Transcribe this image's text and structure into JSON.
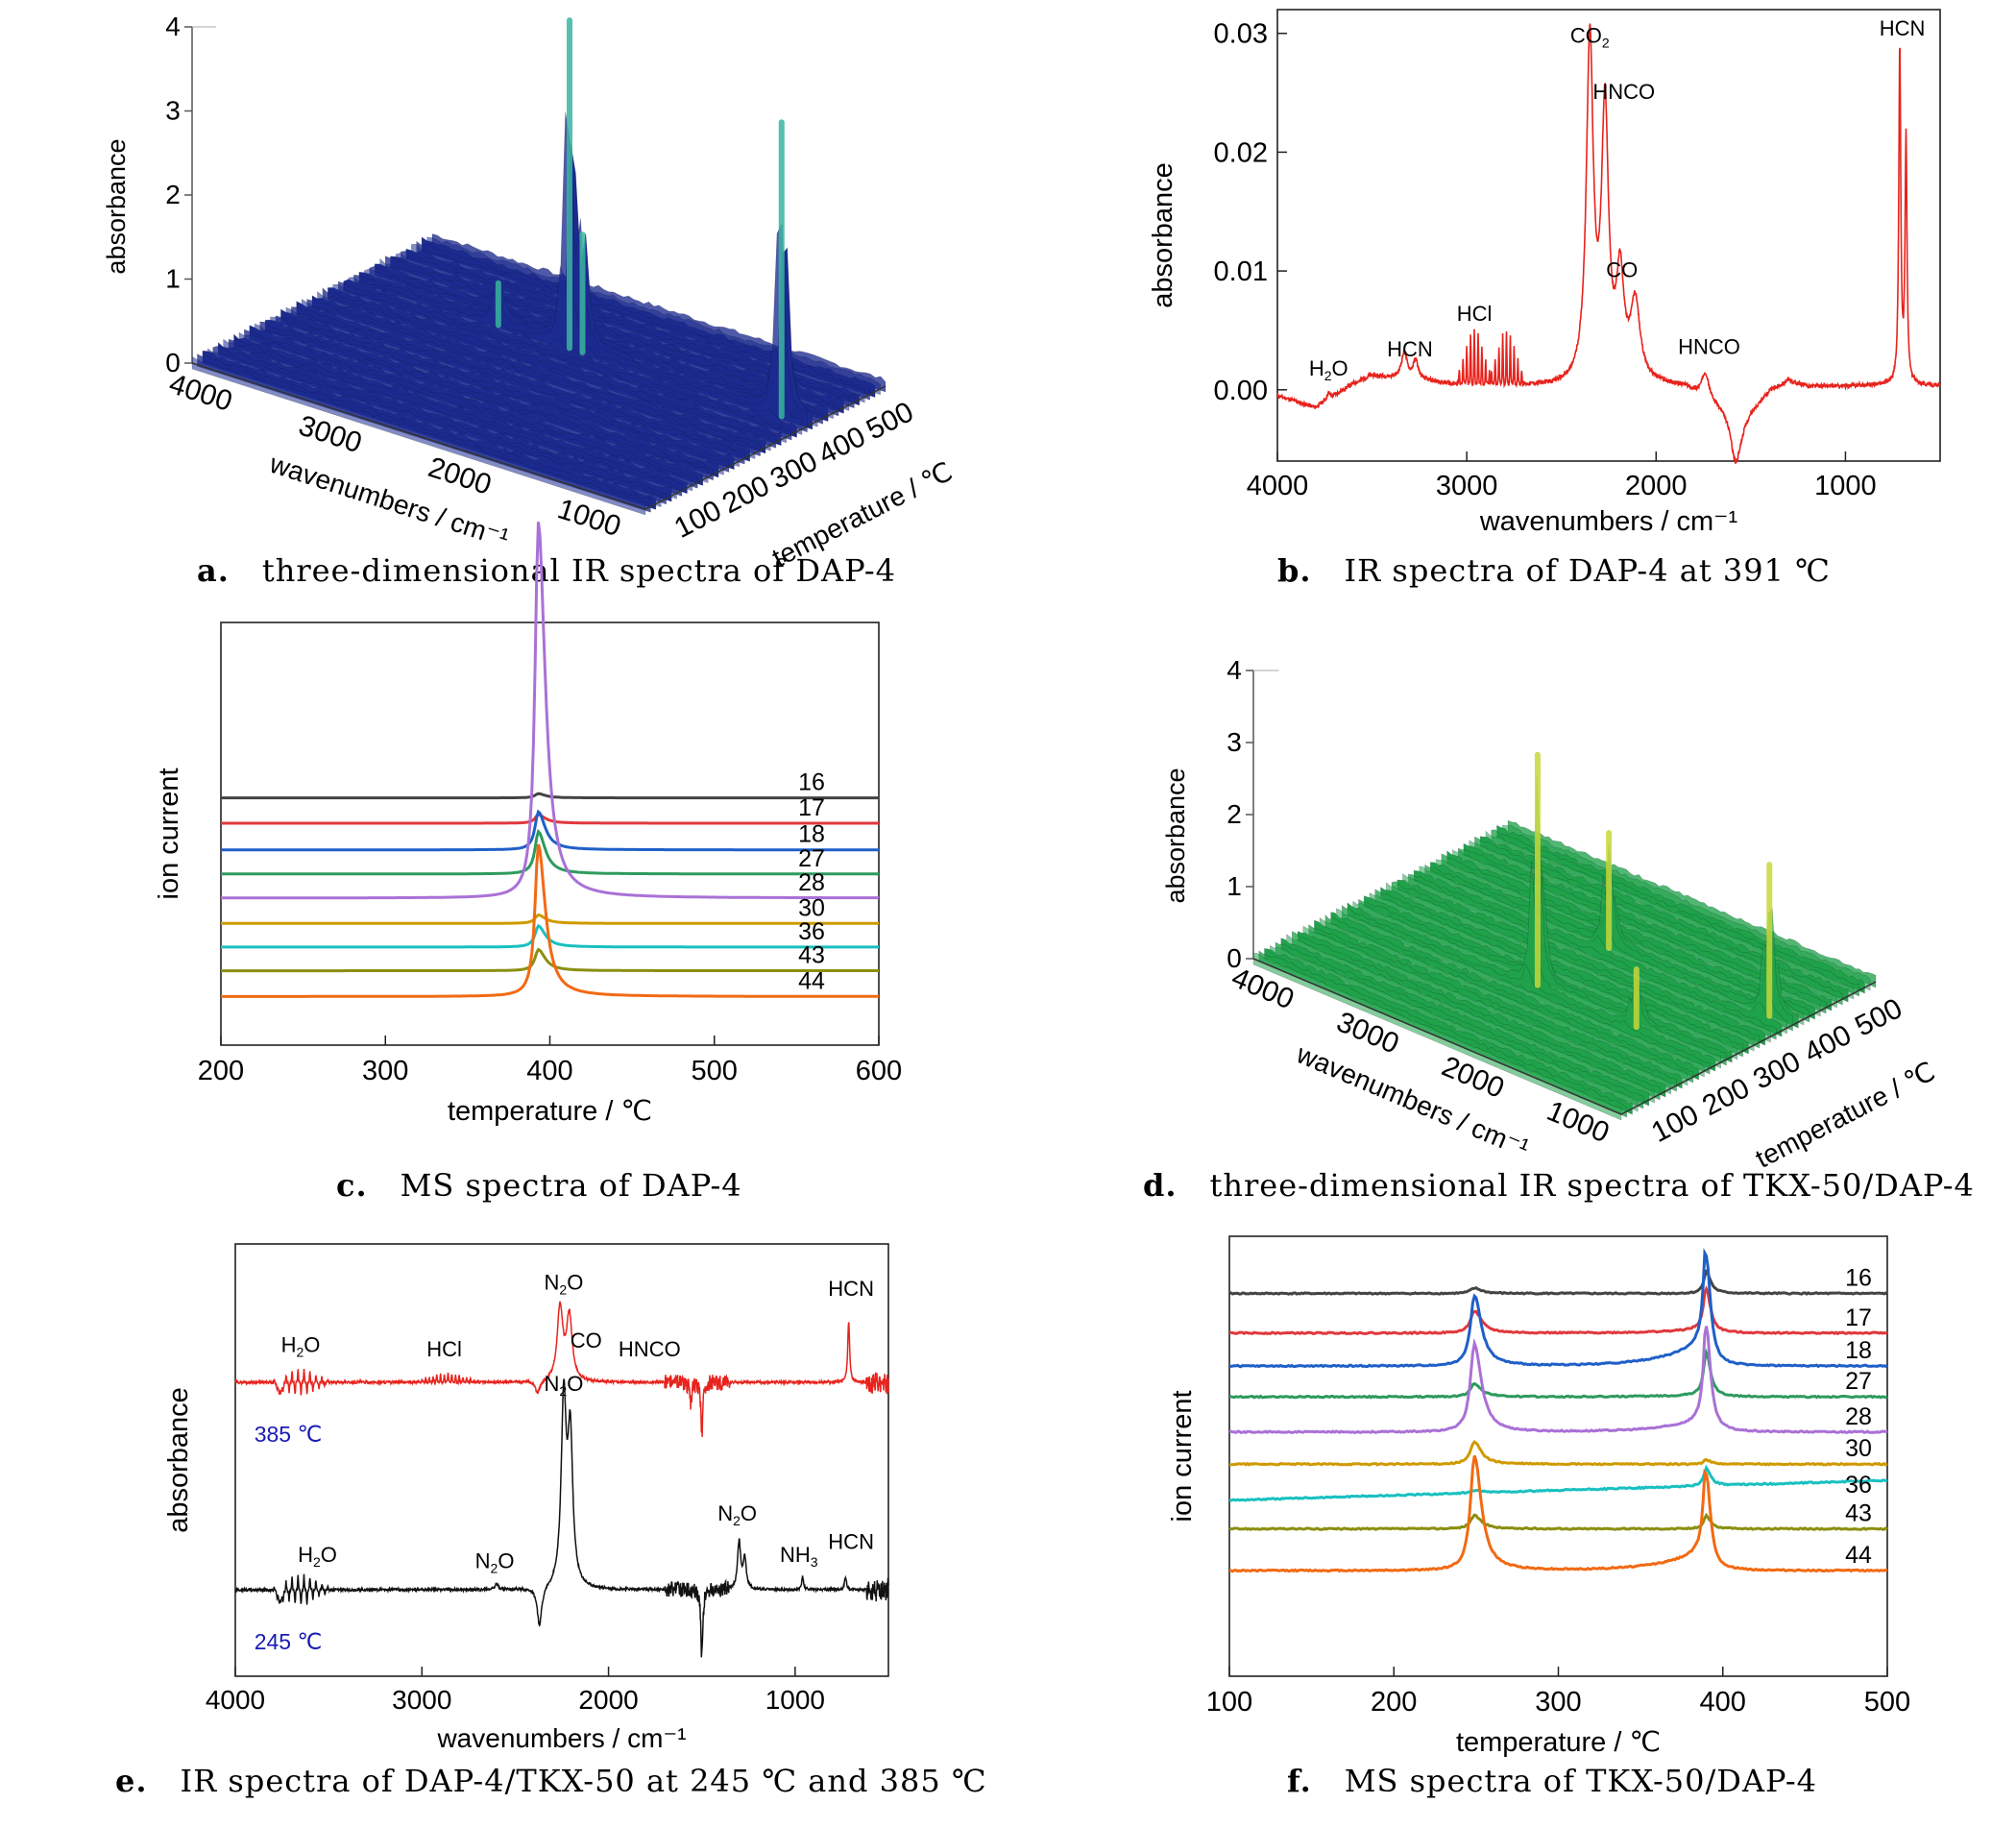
{
  "captions": {
    "a": {
      "letter": "a.",
      "text": "three-dimensional IR spectra of DAP-4"
    },
    "b": {
      "letter": "b.",
      "text": "IR spectra of DAP-4 at 391 ℃"
    },
    "c": {
      "letter": "c.",
      "text": "MS spectra of DAP-4"
    },
    "d": {
      "letter": "d.",
      "text": "three-dimensional IR spectra of TKX-50/DAP-4"
    },
    "e": {
      "letter": "e.",
      "text": "IR spectra of DAP-4/TKX-50 at 245 ℃ and 385 ℃"
    },
    "f": {
      "letter": "f.",
      "text": "MS spectra of TKX-50/DAP-4"
    }
  },
  "chart_data": [
    {
      "id": "a",
      "type": "surface3d",
      "zlabel": "absorbance",
      "xlabel": "wavenumbers / cm⁻¹",
      "ylabel": "temperature / ℃",
      "x_ticks": [
        "4000",
        "3000",
        "2000",
        "1000"
      ],
      "y_ticks": [
        "100",
        "200",
        "300",
        "400",
        "500"
      ],
      "z_ticks": [
        "0",
        "1",
        "2",
        "3",
        "4"
      ],
      "xlim": [
        4000,
        500
      ],
      "ylim": [
        50,
        550
      ],
      "zlim": [
        0,
        4
      ],
      "color": "#1c2b8f",
      "peaks": [
        {
          "x": 2350,
          "y": 391,
          "z": 3.9
        },
        {
          "x": 2250,
          "y": 391,
          "z": 1.4
        },
        {
          "x": 2900,
          "y": 391,
          "z": 0.5
        },
        {
          "x": 713,
          "y": 391,
          "z": 3.5
        }
      ]
    },
    {
      "id": "b",
      "type": "line",
      "xlabel": "wavenumbers / cm⁻¹",
      "ylabel": "absorbance",
      "xlim": [
        4000,
        500
      ],
      "ylim": [
        -0.006,
        0.032
      ],
      "x_ticks": [
        4000,
        3000,
        2000,
        1000
      ],
      "y_ticks": [
        0.0,
        0.01,
        0.02,
        0.03
      ],
      "y_tick_labels": [
        "0.00",
        "0.01",
        "0.02",
        "0.03"
      ],
      "color": "#e8231d",
      "baseline": [
        {
          "x": 4000,
          "y": -0.0005
        },
        {
          "x": 3900,
          "y": -0.001
        },
        {
          "x": 3800,
          "y": -0.0015
        },
        {
          "x": 3700,
          "y": -0.0005
        },
        {
          "x": 3600,
          "y": 0.0005
        },
        {
          "x": 3500,
          "y": 0.0012
        },
        {
          "x": 3400,
          "y": 0.001
        },
        {
          "x": 3200,
          "y": 0.0007
        },
        {
          "x": 3100,
          "y": 0.0005
        },
        {
          "x": 2700,
          "y": 0.0003
        },
        {
          "x": 2450,
          "y": 0.0002
        },
        {
          "x": 2420,
          "y": 0.0003
        },
        {
          "x": 2000,
          "y": 0.0004
        },
        {
          "x": 1850,
          "y": 0.0002
        },
        {
          "x": 1700,
          "y": -0.001
        },
        {
          "x": 1550,
          "y": -0.0025
        },
        {
          "x": 1400,
          "y": 0.0
        },
        {
          "x": 1300,
          "y": 0.0008
        },
        {
          "x": 1200,
          "y": 0.0003
        },
        {
          "x": 1000,
          "y": 0.0003
        },
        {
          "x": 850,
          "y": 0.0004
        },
        {
          "x": 600,
          "y": 0.0004
        },
        {
          "x": 500,
          "y": 0.0003
        }
      ],
      "peaks": [
        {
          "x": 3730,
          "y": 0.0005,
          "w": 12
        },
        {
          "x": 3330,
          "y": 0.0022,
          "w": 18
        },
        {
          "x": 3270,
          "y": 0.0016,
          "w": 16
        },
        {
          "x": 2350,
          "y": 0.0285,
          "w": 22
        },
        {
          "x": 2270,
          "y": 0.0225,
          "w": 22
        },
        {
          "x": 2190,
          "y": 0.0085,
          "w": 24
        },
        {
          "x": 2110,
          "y": 0.0065,
          "w": 30
        },
        {
          "x": 1740,
          "y": 0.0022,
          "w": 22
        },
        {
          "x": 1580,
          "y": -0.004,
          "w": 30
        },
        {
          "x": 713,
          "y": 0.0285,
          "w": 6
        },
        {
          "x": 680,
          "y": 0.0205,
          "w": 6
        }
      ],
      "combs": [
        {
          "from": 3050,
          "to": 2880,
          "center": 2960,
          "amp": 0.0045,
          "spacing": 20,
          "w": 3
        },
        {
          "from": 2880,
          "to": 2700,
          "center": 2790,
          "amp": 0.0045,
          "spacing": 20,
          "w": 3
        }
      ],
      "annotations": [
        {
          "text": "H2O",
          "x": 3730,
          "y": 0.0012,
          "sub": "2"
        },
        {
          "text": "HCN",
          "x": 3300,
          "y": 0.0028
        },
        {
          "text": "HCl",
          "x": 2960,
          "y": 0.0058
        },
        {
          "text": "CO2",
          "x": 2350,
          "y": 0.0292,
          "sub": "2"
        },
        {
          "text": "HNCO",
          "x": 2170,
          "y": 0.0245
        },
        {
          "text": "CO",
          "x": 2180,
          "y": 0.0095
        },
        {
          "text": "HNCO",
          "x": 1720,
          "y": 0.003
        },
        {
          "text": "HCN",
          "x": 700,
          "y": 0.0298
        }
      ]
    },
    {
      "id": "c",
      "type": "line",
      "xlabel": "temperature / ℃",
      "ylabel": "ion current",
      "xlim": [
        200,
        600
      ],
      "x_ticks": [
        200,
        300,
        400,
        500,
        600
      ],
      "peak_x": 393,
      "series": [
        {
          "name": "16",
          "color": "#444444",
          "base": 0.585,
          "peak": 0.01
        },
        {
          "name": "17",
          "color": "#e0383d",
          "base": 0.525,
          "peak": 0.02
        },
        {
          "name": "18",
          "color": "#1f5fc8",
          "base": 0.462,
          "peak": 0.09
        },
        {
          "name": "27",
          "color": "#2e9a5e",
          "base": 0.405,
          "peak": 0.1
        },
        {
          "name": "28",
          "color": "#a971d6",
          "base": 0.348,
          "peak": 0.89
        },
        {
          "name": "30",
          "color": "#cf9a00",
          "base": 0.288,
          "peak": 0.02
        },
        {
          "name": "36",
          "color": "#19c0c0",
          "base": 0.232,
          "peak": 0.05
        },
        {
          "name": "43",
          "color": "#8a8f10",
          "base": 0.176,
          "peak": 0.05
        },
        {
          "name": "44",
          "color": "#f26a12",
          "base": 0.115,
          "peak": 0.36
        }
      ]
    },
    {
      "id": "d",
      "type": "surface3d",
      "zlabel": "absorbance",
      "xlabel": "wavenumbers / cm⁻¹",
      "ylabel": "temperature / ℃",
      "x_ticks": [
        "4000",
        "3000",
        "2000",
        "1000"
      ],
      "y_ticks": [
        "100",
        "200",
        "300",
        "400",
        "500"
      ],
      "z_ticks": [
        "0",
        "1",
        "2",
        "3",
        "4"
      ],
      "xlim": [
        4000,
        500
      ],
      "ylim": [
        50,
        550
      ],
      "zlim": [
        0,
        4
      ],
      "color": "#1fa24a",
      "peaks": [
        {
          "x": 2240,
          "y": 245,
          "z": 3.2
        },
        {
          "x": 2240,
          "y": 385,
          "z": 1.6
        },
        {
          "x": 713,
          "y": 385,
          "z": 2.1
        },
        {
          "x": 1300,
          "y": 245,
          "z": 0.8
        }
      ]
    },
    {
      "id": "e",
      "type": "line",
      "xlabel": "wavenumbers / cm⁻¹",
      "ylabel": "absorbance",
      "xlim": [
        4000,
        500
      ],
      "x_ticks": [
        4000,
        3000,
        2000,
        1000
      ],
      "series": [
        {
          "name": "385 ℃",
          "color": "#e8231d",
          "label_color": "#1a1ab4",
          "offset": 0.68,
          "peaks": [
            {
              "x": 3760,
              "y": -0.035,
              "w": 8
            },
            {
              "x": 2260,
              "y": 0.17,
              "w": 18
            },
            {
              "x": 2210,
              "y": 0.15,
              "w": 18
            },
            {
              "x": 2380,
              "y": -0.03,
              "w": 15
            },
            {
              "x": 1500,
              "y": -0.12,
              "w": 6
            },
            {
              "x": 1560,
              "y": -0.05,
              "w": 6
            },
            {
              "x": 713,
              "y": 0.14,
              "w": 6
            }
          ],
          "combs": [
            {
              "from": 3800,
              "to": 3500,
              "center": 3650,
              "amp": 0.03,
              "spacing": 16,
              "w": 3,
              "signed": true
            },
            {
              "from": 3030,
              "to": 2700,
              "center": 2860,
              "amp": 0.02,
              "spacing": 20,
              "w": 3
            }
          ]
        },
        {
          "name": "245 ℃",
          "color": "#111111",
          "label_color": "#1a1ab4",
          "offset": 0.2,
          "peaks": [
            {
              "x": 3760,
              "y": -0.04,
              "w": 8
            },
            {
              "x": 2600,
              "y": 0.015,
              "w": 10
            },
            {
              "x": 2240,
              "y": 0.43,
              "w": 16
            },
            {
              "x": 2205,
              "y": 0.34,
              "w": 16
            },
            {
              "x": 2370,
              "y": -0.09,
              "w": 15
            },
            {
              "x": 1500,
              "y": -0.16,
              "w": 6
            },
            {
              "x": 1300,
              "y": 0.11,
              "w": 10
            },
            {
              "x": 1270,
              "y": 0.07,
              "w": 10
            },
            {
              "x": 960,
              "y": 0.03,
              "w": 6
            },
            {
              "x": 730,
              "y": 0.03,
              "w": 6
            }
          ],
          "combs": [
            {
              "from": 3800,
              "to": 3500,
              "center": 3650,
              "amp": 0.035,
              "spacing": 16,
              "w": 3,
              "signed": true
            }
          ]
        }
      ],
      "annotations": [
        {
          "text": "H2O",
          "x": 3650,
          "series": 0,
          "dy": 0.07,
          "sub": "2"
        },
        {
          "text": "HCl",
          "x": 2880,
          "series": 0,
          "dy": 0.06
        },
        {
          "text": "N2O",
          "x": 2240,
          "series": 0,
          "dy": 0.215,
          "sub": "2"
        },
        {
          "text": "CO",
          "x": 2120,
          "series": 0,
          "dy": 0.08
        },
        {
          "text": "HNCO",
          "x": 1780,
          "series": 0,
          "dy": 0.06
        },
        {
          "text": "HCN",
          "x": 700,
          "series": 0,
          "dy": 0.2
        },
        {
          "text": "N2O",
          "x": 2240,
          "series": 1,
          "dy": 0.46,
          "sub": "2"
        },
        {
          "text": "H2O",
          "x": 3560,
          "series": 1,
          "dy": 0.065,
          "sub": "2"
        },
        {
          "text": "N2O",
          "x": 2610,
          "series": 1,
          "dy": 0.05,
          "sub": "2"
        },
        {
          "text": "N2O",
          "x": 1310,
          "series": 1,
          "dy": 0.16,
          "sub": "2"
        },
        {
          "text": "NH3",
          "x": 980,
          "series": 1,
          "dy": 0.065,
          "sub": "3"
        },
        {
          "text": "HCN",
          "x": 700,
          "series": 1,
          "dy": 0.095
        }
      ]
    },
    {
      "id": "f",
      "type": "line",
      "xlabel": "temperature / ℃",
      "ylabel": "ion current",
      "xlim": [
        100,
        500
      ],
      "x_ticks": [
        100,
        200,
        300,
        400,
        500
      ],
      "series": [
        {
          "name": "16",
          "color": "#444444",
          "base": 0.87,
          "p1": 0.012,
          "p2": 0.05,
          "tail": 0.0
        },
        {
          "name": "17",
          "color": "#e0383d",
          "base": 0.78,
          "p1": 0.05,
          "p2": 0.1,
          "tail": 0.01
        },
        {
          "name": "18",
          "color": "#1f5fc8",
          "base": 0.705,
          "p1": 0.16,
          "p2": 0.25,
          "tail": 0.06
        },
        {
          "name": "27",
          "color": "#2e9a5e",
          "base": 0.635,
          "p1": 0.03,
          "p2": 0.1,
          "tail": 0.005
        },
        {
          "name": "28",
          "color": "#a971d6",
          "base": 0.555,
          "p1": 0.2,
          "p2": 0.24,
          "tail": 0.03
        },
        {
          "name": "30",
          "color": "#cf9a00",
          "base": 0.482,
          "p1": 0.05,
          "p2": 0.01,
          "tail": 0.0
        },
        {
          "name": "36",
          "color": "#19c0c0",
          "base": 0.4,
          "p1": 0.005,
          "p2": 0.04,
          "tail": 0.0,
          "slope": 0.045
        },
        {
          "name": "43",
          "color": "#8a8f10",
          "base": 0.335,
          "p1": 0.03,
          "p2": 0.03,
          "tail": 0.0
        },
        {
          "name": "44",
          "color": "#f26a12",
          "base": 0.24,
          "p1": 0.26,
          "p2": 0.22,
          "tail": 0.05
        }
      ]
    }
  ]
}
